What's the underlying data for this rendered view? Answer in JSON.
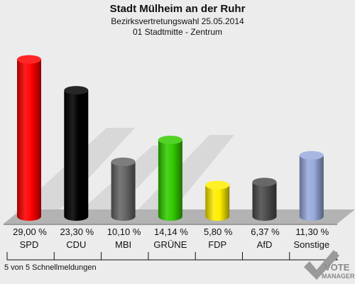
{
  "chart_data": {
    "type": "bar",
    "title": "Stadt Mülheim an der Ruhr",
    "subtitle": "Bezirksvertretungswahl 25.05.2014",
    "subtitle2": "01 Stadtmitte - Zentrum",
    "categories": [
      "SPD",
      "CDU",
      "MBI",
      "GRÜNE",
      "FDP",
      "AfD",
      "Sonstige"
    ],
    "values": [
      29.0,
      23.3,
      10.1,
      14.14,
      5.8,
      6.37,
      11.3
    ],
    "value_labels": [
      "29,00 %",
      "23,30 %",
      "10,10 %",
      "14,14 %",
      "5,80 %",
      "6,37 %",
      "11,30 %"
    ],
    "colors": [
      "#ff0000",
      "#000000",
      "#666666",
      "#33cc00",
      "#ffee00",
      "#4d4d4d",
      "#99aadd"
    ],
    "ylim": [
      0,
      30
    ],
    "grid": false,
    "legend": "none"
  },
  "footer": {
    "note": "5 von 5 Schnellmeldungen",
    "logo_line1": "VOTE",
    "logo_line2": "MANAGER"
  }
}
